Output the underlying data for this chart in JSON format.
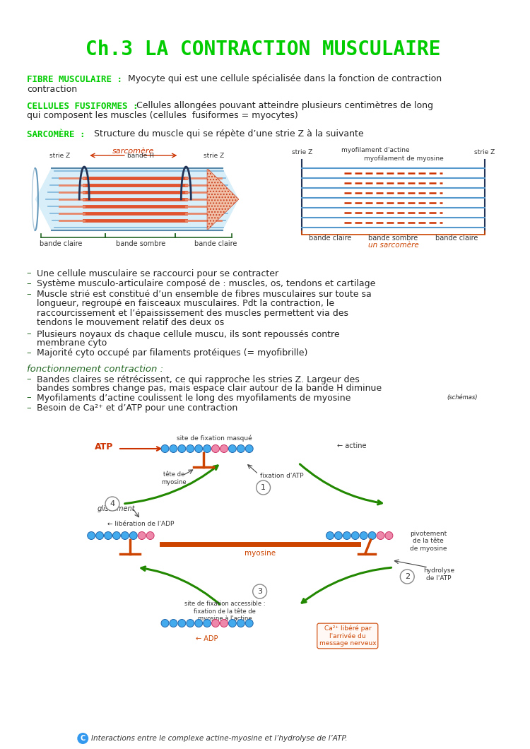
{
  "title": "Ch.3 LA CONTRACTION MUSCULAIRE",
  "title_color": "#00cc00",
  "bg_color": "#ffffff",
  "section1_label": "FIBRE MUSCULAIRE :",
  "section1_text": " Myocyte qui est une cellule spécialisée dans la fonction de contraction",
  "section2_label": "CELLULES FUSIFORMES :",
  "section2_line1": " Cellules allongées pouvant atteindre plusieurs centimètres de long",
  "section2_line2": "qui composent les muscles (cellules  fusiformes = myocytes)",
  "section3_label": "SARCOMÈRE :",
  "section3_text": " Structure du muscle qui se répète d’une strie Z à la suivante",
  "label_color": "#00cc00",
  "text_color": "#222222",
  "fonct_label": "fonctionnement contraction :",
  "caption": "Interactions entre le complexe actine-myosine et l’hydrolyse de l’ATP."
}
